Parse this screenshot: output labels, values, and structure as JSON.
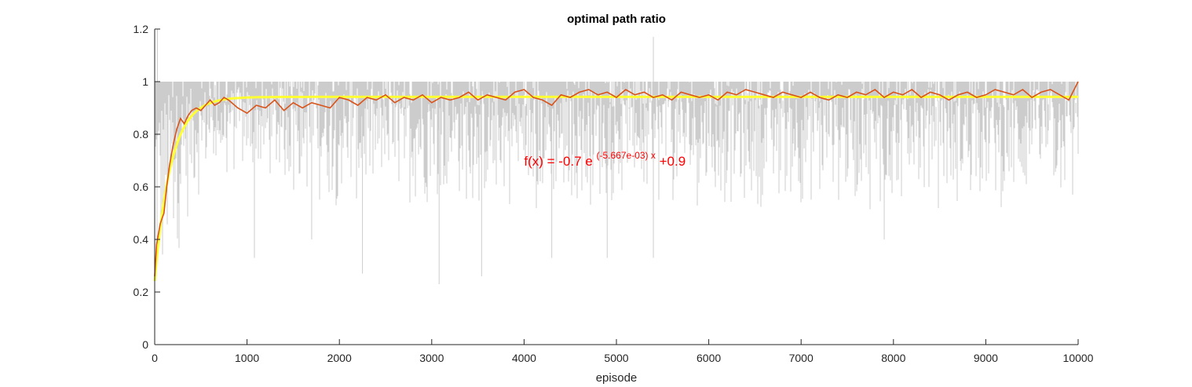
{
  "chart_data": {
    "type": "line",
    "title": "optimal path ratio",
    "xlabel": "episode",
    "ylabel": "",
    "xlim": [
      0,
      10000
    ],
    "ylim": [
      0,
      1.2
    ],
    "x_ticks": [
      0,
      1000,
      2000,
      3000,
      4000,
      5000,
      6000,
      7000,
      8000,
      9000,
      10000
    ],
    "x_tick_labels": [
      "0",
      "1000",
      "2000",
      "3000",
      "4000",
      "5000",
      "6000",
      "7000",
      "8000",
      "9000",
      "10000"
    ],
    "y_ticks": [
      0,
      0.2,
      0.4,
      0.6,
      0.8,
      1.0,
      1.2
    ],
    "y_tick_labels": [
      "0",
      "0.2",
      "0.4",
      "0.6",
      "0.8",
      "1",
      "1.2"
    ],
    "grid": false,
    "annotation": {
      "prefix": "f(x) = -0.7 e",
      "exponent": "(-5.667e-03) x",
      "suffix": "+0.9",
      "x": 4000,
      "y": 0.68
    },
    "series": [
      {
        "role": "raw-per-episode",
        "color": "#cccccc",
        "band_top": 1.0,
        "band_bottom_samples": [
          [
            0,
            0.06
          ],
          [
            50,
            0.04
          ],
          [
            100,
            0.1
          ],
          [
            150,
            0.2
          ],
          [
            200,
            0.3
          ],
          [
            300,
            0.35
          ],
          [
            400,
            0.5
          ],
          [
            500,
            0.55
          ],
          [
            600,
            0.6
          ],
          [
            1000,
            0.6
          ],
          [
            2000,
            0.5
          ],
          [
            10000,
            0.5
          ]
        ],
        "outliers_low": [
          [
            1080,
            0.33
          ],
          [
            1700,
            0.4
          ],
          [
            2250,
            0.27
          ],
          [
            3080,
            0.23
          ],
          [
            3540,
            0.26
          ],
          [
            4300,
            0.33
          ],
          [
            4900,
            0.33
          ],
          [
            5400,
            0.33
          ],
          [
            7900,
            0.4
          ]
        ],
        "outliers_high": [
          [
            30,
            1.2
          ],
          [
            5400,
            1.17
          ]
        ]
      },
      {
        "role": "moving-average",
        "color": "#d95319",
        "x": [
          0,
          20,
          40,
          60,
          80,
          100,
          130,
          160,
          200,
          240,
          280,
          320,
          360,
          400,
          450,
          500,
          550,
          600,
          650,
          700,
          750,
          800,
          900,
          1000,
          1100,
          1200,
          1300,
          1400,
          1500,
          1600,
          1700,
          1800,
          1900,
          2000,
          2100,
          2200,
          2300,
          2400,
          2500,
          2600,
          2700,
          2800,
          2900,
          3000,
          3100,
          3200,
          3300,
          3400,
          3500,
          3600,
          3700,
          3800,
          3900,
          4000,
          4100,
          4200,
          4300,
          4400,
          4500,
          4600,
          4700,
          4800,
          4900,
          5000,
          5100,
          5200,
          5300,
          5400,
          5500,
          5600,
          5700,
          5800,
          5900,
          6000,
          6100,
          6200,
          6300,
          6400,
          6500,
          6600,
          6700,
          6800,
          6900,
          7000,
          7100,
          7200,
          7300,
          7400,
          7500,
          7600,
          7700,
          7800,
          7900,
          8000,
          8100,
          8200,
          8300,
          8400,
          8500,
          8600,
          8700,
          8800,
          8900,
          9000,
          9100,
          9200,
          9300,
          9400,
          9500,
          9600,
          9700,
          9800,
          9900,
          10000
        ],
        "y": [
          0.26,
          0.38,
          0.42,
          0.46,
          0.48,
          0.5,
          0.6,
          0.68,
          0.76,
          0.82,
          0.86,
          0.84,
          0.87,
          0.89,
          0.9,
          0.89,
          0.91,
          0.93,
          0.91,
          0.92,
          0.94,
          0.93,
          0.9,
          0.88,
          0.91,
          0.9,
          0.93,
          0.89,
          0.92,
          0.9,
          0.92,
          0.91,
          0.9,
          0.94,
          0.93,
          0.91,
          0.94,
          0.93,
          0.95,
          0.92,
          0.94,
          0.93,
          0.95,
          0.92,
          0.94,
          0.93,
          0.94,
          0.96,
          0.93,
          0.95,
          0.94,
          0.93,
          0.96,
          0.97,
          0.94,
          0.93,
          0.91,
          0.95,
          0.94,
          0.96,
          0.97,
          0.95,
          0.96,
          0.94,
          0.97,
          0.95,
          0.96,
          0.94,
          0.95,
          0.93,
          0.96,
          0.95,
          0.94,
          0.95,
          0.93,
          0.96,
          0.95,
          0.97,
          0.96,
          0.95,
          0.94,
          0.96,
          0.95,
          0.94,
          0.96,
          0.94,
          0.93,
          0.95,
          0.94,
          0.96,
          0.95,
          0.97,
          0.94,
          0.96,
          0.95,
          0.97,
          0.94,
          0.96,
          0.95,
          0.93,
          0.95,
          0.96,
          0.94,
          0.95,
          0.97,
          0.96,
          0.95,
          0.97,
          0.94,
          0.96,
          0.97,
          0.95,
          0.93,
          1.0
        ]
      },
      {
        "role": "exponential-fit",
        "color": "#ffff33",
        "formula": {
          "a": -0.7,
          "b": -0.005667,
          "c": 0.9
        }
      }
    ]
  }
}
